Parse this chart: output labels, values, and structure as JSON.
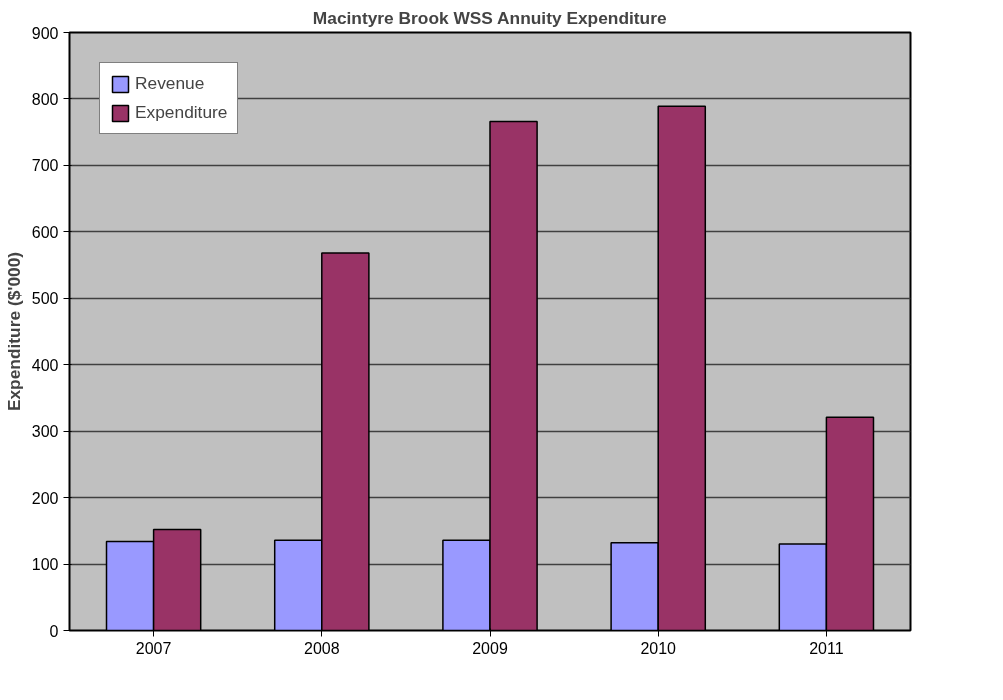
{
  "chart_data": {
    "type": "bar",
    "title": "Macintyre Brook WSS Annuity Expenditure",
    "ylabel": "Expenditure ($'000)",
    "categories": [
      "2007",
      "2008",
      "2009",
      "2010",
      "2011"
    ],
    "series": [
      {
        "name": "Revenue",
        "color": "#9999ff",
        "values": [
          134,
          136,
          136,
          132,
          130
        ]
      },
      {
        "name": "Expenditure",
        "color": "#993366",
        "values": [
          152,
          568,
          766,
          789,
          321
        ]
      }
    ],
    "ylim": [
      0,
      900
    ],
    "yticks": [
      0,
      100,
      200,
      300,
      400,
      500,
      600,
      700,
      800,
      900
    ],
    "grid": "y",
    "legend": "top left"
  }
}
